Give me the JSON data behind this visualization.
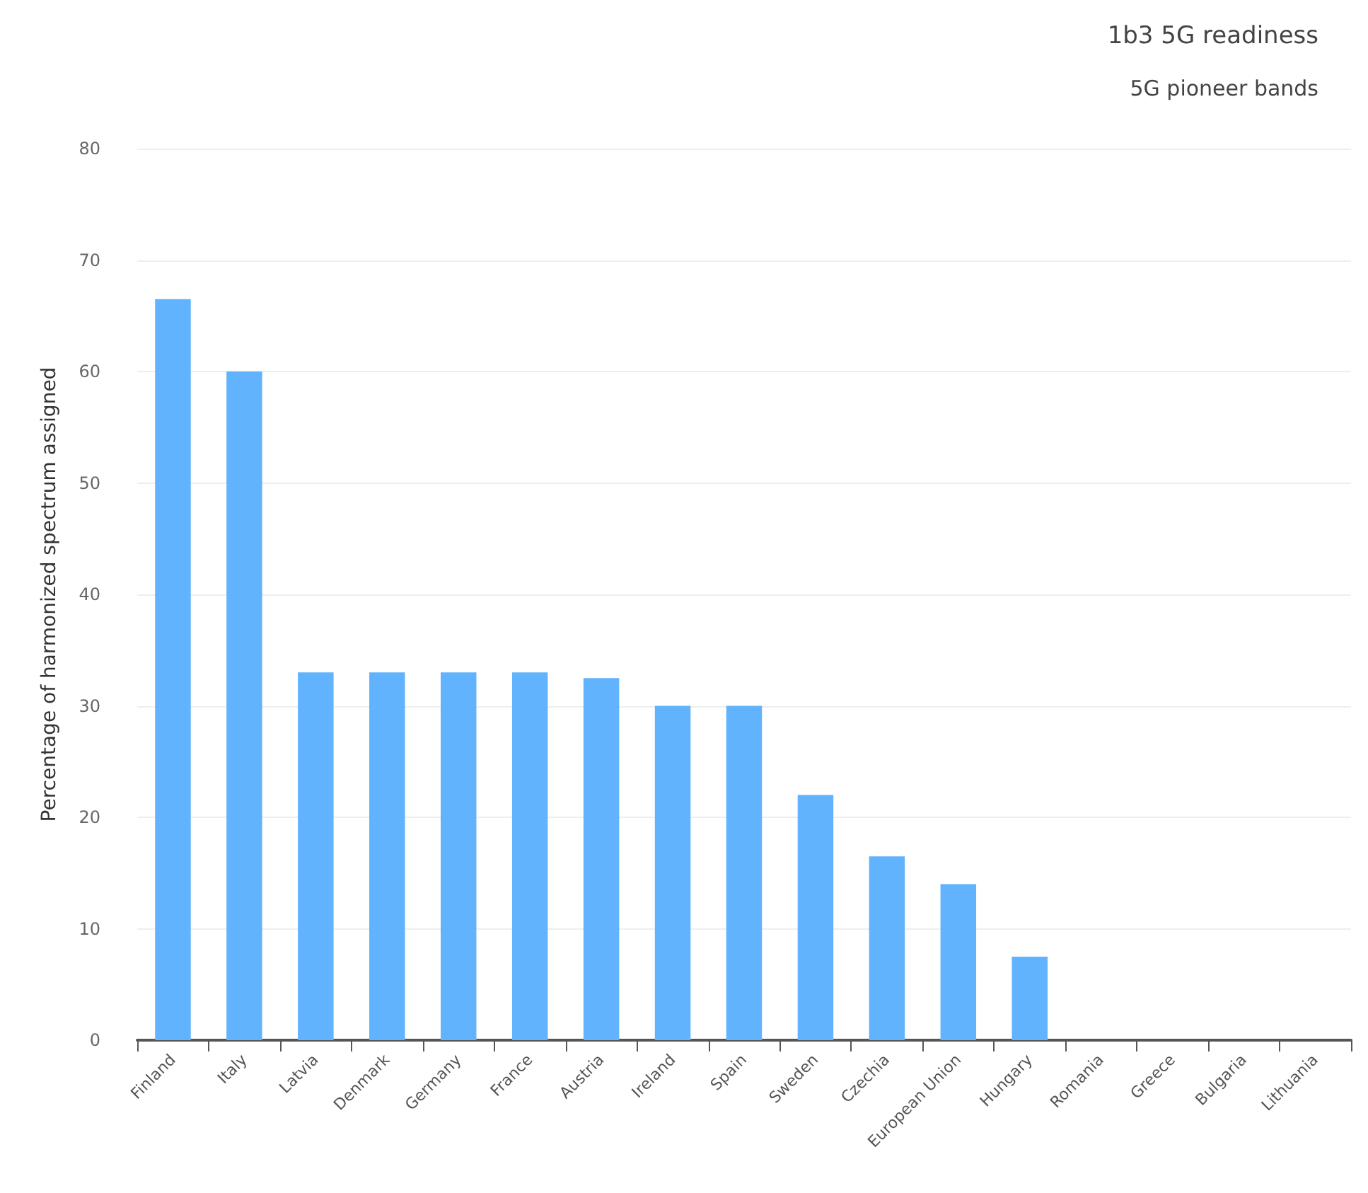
{
  "chart_data": {
    "type": "bar",
    "title": "1b3 5G readiness",
    "subtitle": "5G pioneer bands",
    "ylabel": "Percentage of harmonized spectrum assigned",
    "categories": [
      "Finland",
      "Italy",
      "Latvia",
      "Denmark",
      "Germany",
      "France",
      "Austria",
      "Ireland",
      "Spain",
      "Sweden",
      "Czechia",
      "European Union",
      "Hungary",
      "Romania",
      "Greece",
      "Bulgaria",
      "Lithuania"
    ],
    "values": [
      66.5,
      60,
      33,
      33,
      33,
      33,
      32.5,
      30,
      30,
      22,
      16.5,
      14,
      7.5,
      0,
      0,
      0,
      0
    ],
    "color": "#60b3fc",
    "ylim": [
      0,
      80
    ],
    "yticks": [
      0,
      10,
      20,
      30,
      40,
      50,
      60,
      70,
      80
    ],
    "grid": "y"
  }
}
